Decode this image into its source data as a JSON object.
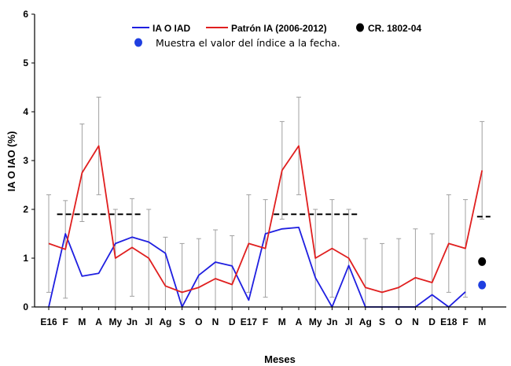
{
  "chart_data": {
    "type": "line",
    "xlabel": "Meses",
    "ylabel": "IA O IAO (%)",
    "ylim": [
      0,
      6
    ],
    "yticks": [
      0,
      1,
      2,
      3,
      4,
      5,
      6
    ],
    "grid": false,
    "legend_position": "top",
    "categories": [
      "E16",
      "F",
      "M",
      "A",
      "My",
      "Jn",
      "Jl",
      "Ag",
      "S",
      "O",
      "N",
      "D",
      "E17",
      "F",
      "M",
      "A",
      "My",
      "Jn",
      "Jl",
      "Ag",
      "S",
      "O",
      "N",
      "D",
      "E18",
      "F",
      "M"
    ],
    "series": [
      {
        "name": "IA O IAD",
        "color": "#1f1fe0",
        "values": [
          0.0,
          1.5,
          0.63,
          0.69,
          1.3,
          1.43,
          1.33,
          1.1,
          0.0,
          0.65,
          0.92,
          0.84,
          0.14,
          1.5,
          1.6,
          1.63,
          0.6,
          0.0,
          0.85,
          0.0,
          0.0,
          0.0,
          0.0,
          0.25,
          0.0,
          0.31,
          null
        ]
      },
      {
        "name": "Patrón IA (2006-2012)",
        "color": "#e01f1f",
        "values": [
          1.3,
          1.18,
          2.75,
          3.3,
          1.0,
          1.22,
          1.0,
          0.43,
          0.3,
          0.4,
          0.58,
          0.46,
          1.3,
          1.2,
          2.8,
          3.3,
          1.0,
          1.2,
          1.0,
          0.4,
          0.3,
          0.4,
          0.6,
          0.5,
          1.3,
          1.2,
          2.8
        ]
      }
    ],
    "error_bars": {
      "color": "#a0a0a0",
      "upper": [
        2.3,
        2.18,
        3.75,
        4.3,
        2.0,
        2.22,
        2.0,
        1.43,
        1.3,
        1.4,
        1.58,
        1.46,
        2.3,
        2.2,
        3.8,
        4.3,
        2.0,
        2.2,
        2.0,
        1.4,
        1.3,
        1.4,
        1.6,
        1.5,
        2.3,
        2.2,
        3.8
      ],
      "lower": [
        0.3,
        0.18,
        1.75,
        2.3,
        0.0,
        0.22,
        0.0,
        0.0,
        0.0,
        0.0,
        0.0,
        0.0,
        0.3,
        0.2,
        1.8,
        2.3,
        0.0,
        0.2,
        0.0,
        0.0,
        0.0,
        0.0,
        0.0,
        0.0,
        0.3,
        0.2,
        1.8
      ]
    },
    "thresholds": [
      {
        "value": 1.9,
        "x_from": 0.5,
        "x_to": 5.5
      },
      {
        "value": 1.9,
        "x_from": 13.5,
        "x_to": 18.5
      },
      {
        "value": 1.85,
        "x_from": 25.7,
        "x_to": 26.5
      }
    ],
    "markers": [
      {
        "name": "CR. 1802-04",
        "x": 26,
        "y": 0.93,
        "color": "#000000"
      },
      {
        "name": "Muestra el valor del índice a la fecha.",
        "x": 26,
        "y": 0.45,
        "color": "#1f3fe0"
      }
    ]
  },
  "legend": {
    "item1": "IA O IAD",
    "item2": "Patrón IA (2006-2012)",
    "item3": "CR. 1802-04",
    "note": "Muestra el valor del índice a la fecha."
  }
}
